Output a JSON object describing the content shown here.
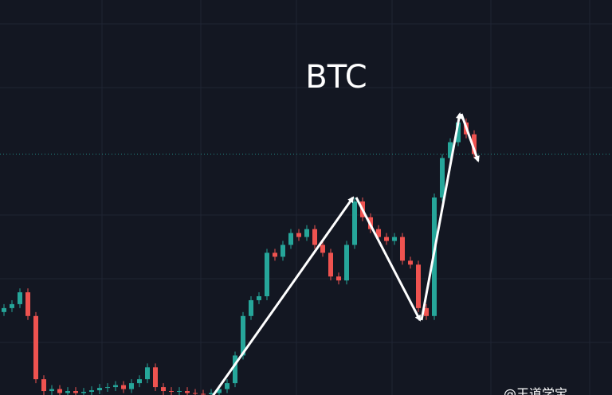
{
  "chart_data": {
    "type": "candlestick",
    "title": "BTC",
    "watermark": "@王道学宝",
    "up_color": "#26a69a",
    "down_color": "#ef5350",
    "ylim": [
      0,
      100
    ],
    "open": [
      21,
      22,
      23,
      26,
      20,
      4,
      1,
      1.5,
      0.5,
      1,
      0.5,
      0.8,
      1.2,
      1.8,
      2,
      2.5,
      1.5,
      3,
      4,
      7,
      2,
      1,
      0.8,
      1,
      0.5,
      0.3,
      0.2,
      0.5,
      1.5,
      3,
      10,
      20,
      24,
      25,
      36,
      35,
      38,
      41,
      40,
      42,
      38,
      36,
      30,
      29,
      38,
      49,
      45,
      42,
      40,
      39,
      40,
      34,
      33,
      22,
      20,
      50,
      60,
      64,
      69,
      66
    ],
    "high": [
      23,
      24,
      27,
      27,
      21,
      5,
      2.5,
      2.5,
      2,
      2,
      1.8,
      2.2,
      2.8,
      3,
      3.5,
      3.5,
      4,
      5,
      8,
      8,
      3,
      2,
      2,
      2,
      1.5,
      1.3,
      1.5,
      2.5,
      4,
      11,
      21,
      25,
      26,
      37,
      37,
      39,
      42,
      42,
      43,
      43,
      39,
      37,
      31,
      39,
      50,
      50,
      46,
      43,
      41,
      41,
      41,
      35,
      34,
      23,
      51,
      61,
      65,
      70,
      70,
      67
    ],
    "low": [
      20,
      21,
      22,
      19,
      3,
      0,
      0,
      0,
      0,
      0,
      0,
      0,
      0.2,
      0.8,
      1,
      0.5,
      0.5,
      2,
      3,
      1,
      0,
      0,
      0,
      0,
      0,
      0,
      0,
      0,
      0.5,
      2,
      9,
      19,
      23,
      24,
      34,
      34,
      37,
      39,
      39,
      37,
      35,
      29,
      28,
      28,
      37,
      44,
      41,
      39,
      38,
      38,
      33,
      32,
      21,
      19,
      19,
      49,
      59,
      63,
      65,
      60
    ],
    "close": [
      22,
      23,
      26,
      20,
      4,
      1,
      1.5,
      0.5,
      1,
      0.5,
      0.8,
      1.2,
      1.8,
      2,
      2.5,
      1.5,
      3,
      4,
      7,
      2,
      1,
      0.8,
      1,
      0.5,
      0.3,
      0.2,
      0.5,
      1.5,
      3,
      10,
      20,
      24,
      25,
      36,
      35,
      38,
      41,
      40,
      42,
      38,
      36,
      30,
      29,
      38,
      49,
      45,
      42,
      40,
      39,
      40,
      34,
      33,
      22,
      20,
      50,
      60,
      64,
      69,
      66,
      61
    ]
  }
}
